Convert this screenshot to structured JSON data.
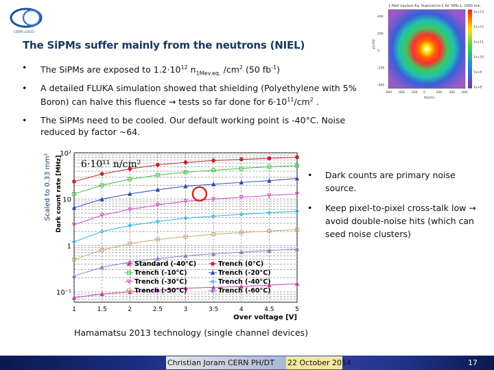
{
  "slide": {
    "title": "The SiPMs suffer mainly from the neutrons (NIEL)",
    "bullets": [
      {
        "before": "The SiPMs are exposed to 1.2·10",
        "sup1": "12",
        "mid": " n",
        "sub": "1Mev.eq.",
        "after": " /cm",
        "sup2": "2",
        "tail": "  (50 fb",
        "sup3": "-1",
        "end": ")"
      },
      {
        "text": "A detailed FLUKA simulation showed that shielding (Polyethylene with 5% Boron) can halve this fluence → tests so far done for 6·10",
        "sup": "11",
        "end": "/cm",
        "sup2": "2",
        "tail": " ."
      },
      {
        "text": "The SiPMs need to be cooled. Our default working point is -40°C. Noise reduced by factor ~64."
      }
    ],
    "right_bullets": [
      "Dark counts are primary noise source.",
      "Keep pixel-to-pixel cross-talk low → avoid double-noise hits (which can seed noise clusters)"
    ],
    "caption": "Hamamatsu 2013 technology (single channel devices)",
    "footer": {
      "author": "Christian Joram CERN PH/DT",
      "date": "22 October 2014",
      "page": "17"
    }
  },
  "heatmap": {
    "title": "1 MeV neutron Eq. fluence(cm-2 for 50fb-1, 1000 min",
    "ylabel": "y(cm)",
    "xlabel": "X(cm)",
    "xticks": [
      "-600",
      "-400",
      "-200",
      "0",
      "200",
      "400",
      "600"
    ],
    "yticks": [
      "400",
      "200",
      "0",
      "-200",
      "-400"
    ],
    "colorbar": [
      "1e+13",
      "1e+12",
      "1e+11",
      "1e+10",
      "1e+9",
      "1e+8"
    ]
  },
  "chart_data": {
    "type": "line",
    "title": "",
    "annotation": "6·10¹¹ n/cm²",
    "side_label": "Scaled to 0.33 mm²",
    "xlabel": "Over voltage [V]",
    "ylabel": "Dark count rate [MHz]",
    "xlim": [
      1,
      5
    ],
    "ylim_log": [
      0.06,
      100
    ],
    "log_y": true,
    "grid": true,
    "xticks": [
      "1",
      "1.5",
      "2",
      "2.5",
      "3",
      "3.5",
      "4",
      "4.5",
      "5"
    ],
    "yticks": [
      "10⁻¹",
      "1",
      "10",
      "10²"
    ],
    "legend_position": "bottom",
    "series": [
      {
        "name": "Standard (-40°C)",
        "color": "#c93aa8",
        "marker": "triangle",
        "x": [
          1.0,
          1.5,
          2.0,
          2.5,
          3.0,
          3.5,
          4.0,
          4.5,
          5.0
        ],
        "y": [
          0.075,
          0.09,
          0.1,
          0.11,
          0.12,
          0.125,
          0.13,
          0.14,
          0.15
        ]
      },
      {
        "name": "Trench (0°C)",
        "color": "#c0282d",
        "marker": "circle",
        "x": [
          1.0,
          1.5,
          2.0,
          2.5,
          3.0,
          3.5,
          4.0,
          4.5,
          5.0
        ],
        "y": [
          24,
          35,
          45,
          55,
          62,
          68,
          72,
          76,
          80
        ]
      },
      {
        "name": "Trench (-10°C)",
        "color": "#3cc13c",
        "marker": "square",
        "x": [
          1.0,
          1.5,
          2.0,
          2.5,
          3.0,
          3.5,
          4.0,
          4.5,
          5.0
        ],
        "y": [
          13,
          20,
          27,
          33,
          38,
          42,
          46,
          50,
          53
        ]
      },
      {
        "name": "Trench (-20°C)",
        "color": "#2f45b8",
        "marker": "triangle",
        "x": [
          1.0,
          1.5,
          2.0,
          2.5,
          3.0,
          3.5,
          4.0,
          4.5,
          5.0
        ],
        "y": [
          6.5,
          10,
          13,
          16,
          19,
          21,
          23,
          25,
          28
        ]
      },
      {
        "name": "Trench (-30°C)",
        "color": "#d447c4",
        "marker": "triangle-down",
        "x": [
          1.0,
          1.5,
          2.0,
          2.5,
          3.0,
          3.5,
          4.0,
          4.5,
          5.0
        ],
        "y": [
          2.8,
          4.5,
          6,
          7.5,
          9,
          10,
          11,
          12,
          13
        ]
      },
      {
        "name": "Trench (-40°C)",
        "color": "#29b6e0",
        "marker": "diamond",
        "x": [
          1.0,
          1.5,
          2.0,
          2.5,
          3.0,
          3.5,
          4.0,
          4.5,
          5.0
        ],
        "y": [
          1.2,
          2.0,
          2.7,
          3.3,
          3.9,
          4.3,
          4.7,
          5.1,
          5.5
        ]
      },
      {
        "name": "Trench (-50°C)",
        "color": "#c9a46a",
        "marker": "square",
        "x": [
          1.0,
          1.5,
          2.0,
          2.5,
          3.0,
          3.5,
          4.0,
          4.5,
          5.0
        ],
        "y": [
          0.5,
          0.8,
          1.1,
          1.35,
          1.55,
          1.75,
          1.9,
          2.05,
          2.2
        ]
      },
      {
        "name": "Trench (-60°C)",
        "color": "#8a7ec9",
        "marker": "triangle",
        "x": [
          1.0,
          1.5,
          2.0,
          2.5,
          3.0,
          3.5,
          4.0,
          4.5,
          5.0
        ],
        "y": [
          0.22,
          0.34,
          0.44,
          0.52,
          0.6,
          0.66,
          0.72,
          0.78,
          0.84
        ]
      }
    ],
    "highlight": {
      "x": 3.25,
      "y": 13,
      "color": "#d9261c"
    }
  }
}
